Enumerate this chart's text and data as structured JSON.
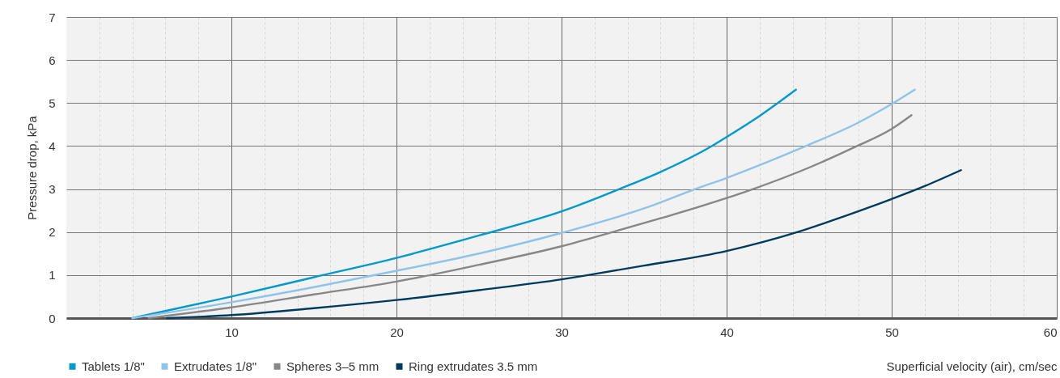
{
  "chart_data": {
    "type": "line",
    "xlabel": "Superficial velocity (air), cm/sec",
    "ylabel": "Pressure drop, kPa",
    "xlim": [
      0,
      60
    ],
    "ylim": [
      0,
      7
    ],
    "xticks": [
      {
        "value": 2,
        "label": null
      },
      {
        "value": 4,
        "label": null
      },
      {
        "value": 6,
        "label": null
      },
      {
        "value": 8,
        "label": null
      },
      10,
      {
        "value": 12,
        "label": null
      },
      {
        "value": 14,
        "label": null
      },
      {
        "value": 16,
        "label": null
      },
      {
        "value": 18,
        "label": null
      },
      20,
      {
        "value": 22,
        "label": null
      },
      {
        "value": 24,
        "label": null
      },
      {
        "value": 26,
        "label": null
      },
      {
        "value": 28,
        "label": null
      },
      30,
      {
        "value": 32,
        "label": null
      },
      {
        "value": 34,
        "label": null
      },
      {
        "value": 36,
        "label": null
      },
      {
        "value": 38,
        "label": null
      },
      40,
      {
        "value": 42,
        "label": null
      },
      {
        "value": 44,
        "label": null
      },
      {
        "value": 46,
        "label": null
      },
      {
        "value": 48,
        "label": null
      },
      50,
      {
        "value": 52,
        "label": null
      },
      {
        "value": 54,
        "label": null
      },
      {
        "value": 56,
        "label": null
      },
      {
        "value": 58,
        "label": null
      },
      60
    ],
    "yticks": [
      0,
      1,
      2,
      3,
      4,
      5,
      6,
      7
    ],
    "grid": true,
    "legend": "bottom left",
    "series": [
      {
        "name": "Tablets 1/8\"",
        "color": "#0099cc",
        "x": [
          4,
          10,
          15,
          20,
          25,
          30,
          33.5,
          36,
          39.1,
          40,
          42,
          44.2
        ],
        "values": [
          0,
          0.5,
          0.95,
          1.4,
          1.92,
          2.48,
          3,
          3.4,
          4,
          4.21,
          4.7,
          5.31
        ]
      },
      {
        "name": "Extrudates 1/8\"",
        "color": "#8fc3ea",
        "x": [
          4,
          10,
          15,
          20,
          25,
          30,
          35,
          38.1,
          40,
          44.8,
          48,
          50.1,
          51.4
        ],
        "values": [
          0,
          0.37,
          0.72,
          1.1,
          1.5,
          1.98,
          2.55,
          3,
          3.26,
          4,
          4.55,
          5,
          5.31
        ]
      },
      {
        "name": "Spheres 3–5 mm",
        "color": "#878787",
        "x": [
          5,
          10,
          15,
          20,
          25,
          30,
          33.1,
          36,
          40,
          41.6,
          45,
          47.9,
          50,
          51.2
        ],
        "values": [
          0,
          0.25,
          0.55,
          0.85,
          1.24,
          1.67,
          2,
          2.32,
          2.79,
          3,
          3.5,
          4,
          4.4,
          4.72
        ]
      },
      {
        "name": "Ring extrudates 3.5 mm",
        "color": "#003a5d",
        "x": [
          6.1,
          10,
          15,
          20,
          25,
          30,
          31.6,
          35,
          40,
          44.3,
          47,
          50,
          52,
          54.2
        ],
        "values": [
          0,
          0.07,
          0.23,
          0.42,
          0.65,
          0.9,
          1,
          1.22,
          1.56,
          2,
          2.35,
          2.77,
          3.07,
          3.44
        ]
      }
    ]
  }
}
